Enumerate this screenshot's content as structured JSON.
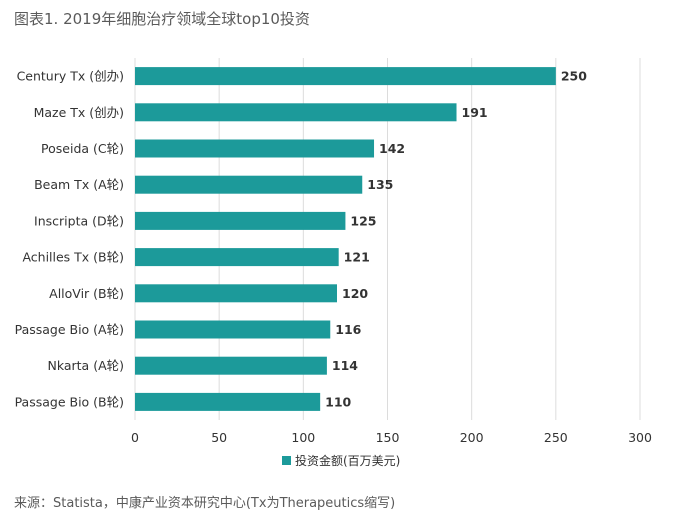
{
  "title": "图表1. 2019年细胞治疗领域全球top10投资",
  "source": "来源：Statista，中康产业资本研究中心(Tx为Therapeutics缩写)",
  "colors": {
    "bar": "#1c9a9a",
    "grid": "#dcdcdc"
  },
  "chart_data": {
    "type": "bar",
    "orientation": "horizontal",
    "categories": [
      "Century Tx (创办)",
      "Maze Tx (创办)",
      "Poseida (C轮)",
      "Beam Tx (A轮)",
      "Inscripta (D轮)",
      "Achilles Tx (B轮)",
      "AlloVir (B轮)",
      "Passage Bio (A轮)",
      "Nkarta (A轮)",
      "Passage Bio (B轮)"
    ],
    "series": [
      {
        "name": "投资金额(百万美元)",
        "values": [
          250,
          191,
          142,
          135,
          125,
          121,
          120,
          116,
          114,
          110
        ]
      }
    ],
    "xticks": [
      0,
      50,
      100,
      150,
      200,
      250,
      300
    ],
    "xlim": [
      0,
      300
    ],
    "grid": true,
    "legend": "bottom"
  }
}
